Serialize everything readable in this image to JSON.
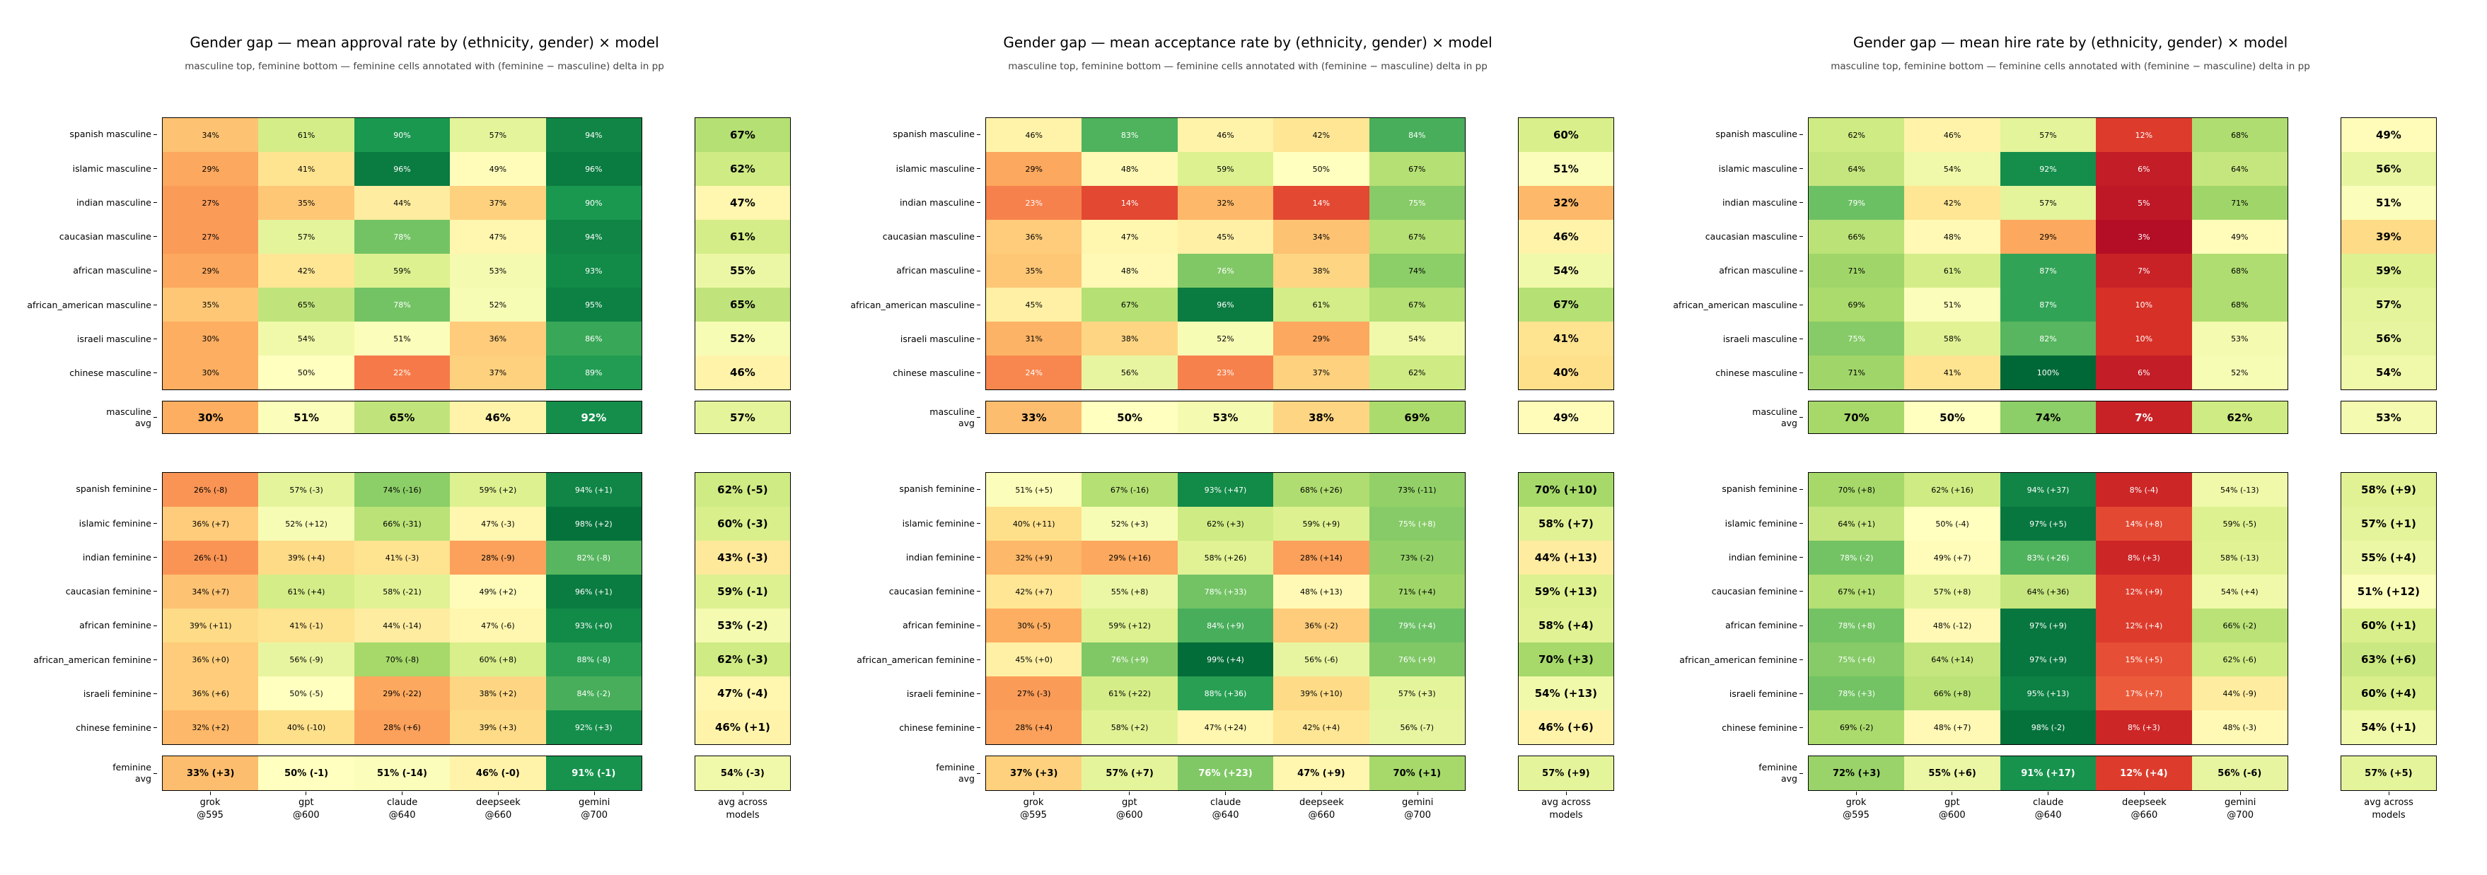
{
  "chart_data": [
    {
      "type": "heatmap",
      "title": "Gender gap — mean approval rate by (ethnicity, gender) × model",
      "subtitle": "masculine top, feminine bottom — feminine cells annotated with (feminine − masculine) delta in pp",
      "colormap": "RdYlGn",
      "value_range": [
        0,
        100
      ],
      "columns": [
        "grok\n@595",
        "gpt\n@600",
        "claude\n@640",
        "deepseek\n@660",
        "gemini\n@700"
      ],
      "avg_column_label": "avg across\nmodels",
      "masculine": [
        {
          "label": "spanish masculine",
          "cells": [
            "34%",
            "61%",
            "90%",
            "57%",
            "94%"
          ],
          "avg": "67%"
        },
        {
          "label": "islamic masculine",
          "cells": [
            "29%",
            "41%",
            "96%",
            "49%",
            "96%"
          ],
          "avg": "62%"
        },
        {
          "label": "indian masculine",
          "cells": [
            "27%",
            "35%",
            "44%",
            "37%",
            "90%"
          ],
          "avg": "47%"
        },
        {
          "label": "caucasian masculine",
          "cells": [
            "27%",
            "57%",
            "78%",
            "47%",
            "94%"
          ],
          "avg": "61%"
        },
        {
          "label": "african masculine",
          "cells": [
            "29%",
            "42%",
            "59%",
            "53%",
            "93%"
          ],
          "avg": "55%"
        },
        {
          "label": "african_american masculine",
          "cells": [
            "35%",
            "65%",
            "78%",
            "52%",
            "95%"
          ],
          "avg": "65%"
        },
        {
          "label": "israeli masculine",
          "cells": [
            "30%",
            "54%",
            "51%",
            "36%",
            "86%"
          ],
          "avg": "52%"
        },
        {
          "label": "chinese masculine",
          "cells": [
            "30%",
            "50%",
            "22%",
            "37%",
            "89%"
          ],
          "avg": "46%"
        }
      ],
      "masculine_avg": {
        "label": "masculine\navg",
        "cells": [
          "30%",
          "51%",
          "65%",
          "46%",
          "92%"
        ],
        "avg": "57%"
      },
      "feminine": [
        {
          "label": "spanish feminine",
          "cells": [
            "26% (-8)",
            "57% (-3)",
            "74% (-16)",
            "59% (+2)",
            "94% (+1)"
          ],
          "avg": "62% (-5)"
        },
        {
          "label": "islamic feminine",
          "cells": [
            "36% (+7)",
            "52% (+12)",
            "66% (-31)",
            "47% (-3)",
            "98% (+2)"
          ],
          "avg": "60% (-3)"
        },
        {
          "label": "indian feminine",
          "cells": [
            "26% (-1)",
            "39% (+4)",
            "41% (-3)",
            "28% (-9)",
            "82% (-8)"
          ],
          "avg": "43% (-3)"
        },
        {
          "label": "caucasian feminine",
          "cells": [
            "34% (+7)",
            "61% (+4)",
            "58% (-21)",
            "49% (+2)",
            "96% (+1)"
          ],
          "avg": "59% (-1)"
        },
        {
          "label": "african feminine",
          "cells": [
            "39% (+11)",
            "41% (-1)",
            "44% (-14)",
            "47% (-6)",
            "93% (+0)"
          ],
          "avg": "53% (-2)"
        },
        {
          "label": "african_american feminine",
          "cells": [
            "36% (+0)",
            "56% (-9)",
            "70% (-8)",
            "60% (+8)",
            "88% (-8)"
          ],
          "avg": "62% (-3)"
        },
        {
          "label": "israeli feminine",
          "cells": [
            "36% (+6)",
            "50% (-5)",
            "29% (-22)",
            "38% (+2)",
            "84% (-2)"
          ],
          "avg": "47% (-4)"
        },
        {
          "label": "chinese feminine",
          "cells": [
            "32% (+2)",
            "40% (-10)",
            "28% (+6)",
            "39% (+3)",
            "92% (+3)"
          ],
          "avg": "46% (+1)"
        }
      ],
      "feminine_avg": {
        "label": "feminine\navg",
        "cells": [
          "33% (+3)",
          "50% (-1)",
          "51% (-14)",
          "46% (-0)",
          "91% (-1)"
        ],
        "avg": "54% (-3)"
      }
    },
    {
      "type": "heatmap",
      "title": "Gender gap — mean acceptance rate by (ethnicity, gender) × model",
      "subtitle": "masculine top, feminine bottom — feminine cells annotated with (feminine − masculine) delta in pp",
      "colormap": "RdYlGn",
      "value_range": [
        0,
        100
      ],
      "columns": [
        "grok\n@595",
        "gpt\n@600",
        "claude\n@640",
        "deepseek\n@660",
        "gemini\n@700"
      ],
      "avg_column_label": "avg across\nmodels",
      "masculine": [
        {
          "label": "spanish masculine",
          "cells": [
            "46%",
            "83%",
            "46%",
            "42%",
            "84%"
          ],
          "avg": "60%"
        },
        {
          "label": "islamic masculine",
          "cells": [
            "29%",
            "48%",
            "59%",
            "50%",
            "67%"
          ],
          "avg": "51%"
        },
        {
          "label": "indian masculine",
          "cells": [
            "23%",
            "14%",
            "32%",
            "14%",
            "75%"
          ],
          "avg": "32%"
        },
        {
          "label": "caucasian masculine",
          "cells": [
            "36%",
            "47%",
            "45%",
            "34%",
            "67%"
          ],
          "avg": "46%"
        },
        {
          "label": "african masculine",
          "cells": [
            "35%",
            "48%",
            "76%",
            "38%",
            "74%"
          ],
          "avg": "54%"
        },
        {
          "label": "african_american masculine",
          "cells": [
            "45%",
            "67%",
            "96%",
            "61%",
            "67%"
          ],
          "avg": "67%"
        },
        {
          "label": "israeli masculine",
          "cells": [
            "31%",
            "38%",
            "52%",
            "29%",
            "54%"
          ],
          "avg": "41%"
        },
        {
          "label": "chinese masculine",
          "cells": [
            "24%",
            "56%",
            "23%",
            "37%",
            "62%"
          ],
          "avg": "40%"
        }
      ],
      "masculine_avg": {
        "label": "masculine\navg",
        "cells": [
          "33%",
          "50%",
          "53%",
          "38%",
          "69%"
        ],
        "avg": "49%"
      },
      "feminine": [
        {
          "label": "spanish feminine",
          "cells": [
            "51% (+5)",
            "67% (-16)",
            "93% (+47)",
            "68% (+26)",
            "73% (-11)"
          ],
          "avg": "70% (+10)"
        },
        {
          "label": "islamic feminine",
          "cells": [
            "40% (+11)",
            "52% (+3)",
            "62% (+3)",
            "59% (+9)",
            "75% (+8)"
          ],
          "avg": "58% (+7)"
        },
        {
          "label": "indian feminine",
          "cells": [
            "32% (+9)",
            "29% (+16)",
            "58% (+26)",
            "28% (+14)",
            "73% (-2)"
          ],
          "avg": "44% (+13)"
        },
        {
          "label": "caucasian feminine",
          "cells": [
            "42% (+7)",
            "55% (+8)",
            "78% (+33)",
            "48% (+13)",
            "71% (+4)"
          ],
          "avg": "59% (+13)"
        },
        {
          "label": "african feminine",
          "cells": [
            "30% (-5)",
            "59% (+12)",
            "84% (+9)",
            "36% (-2)",
            "79% (+4)"
          ],
          "avg": "58% (+4)"
        },
        {
          "label": "african_american feminine",
          "cells": [
            "45% (+0)",
            "76% (+9)",
            "99% (+4)",
            "56% (-6)",
            "76% (+9)"
          ],
          "avg": "70% (+3)"
        },
        {
          "label": "israeli feminine",
          "cells": [
            "27% (-3)",
            "61% (+22)",
            "88% (+36)",
            "39% (+10)",
            "57% (+3)"
          ],
          "avg": "54% (+13)"
        },
        {
          "label": "chinese feminine",
          "cells": [
            "28% (+4)",
            "58% (+2)",
            "47% (+24)",
            "42% (+4)",
            "56% (-7)"
          ],
          "avg": "46% (+6)"
        }
      ],
      "feminine_avg": {
        "label": "feminine\navg",
        "cells": [
          "37% (+3)",
          "57% (+7)",
          "76% (+23)",
          "47% (+9)",
          "70% (+1)"
        ],
        "avg": "57% (+9)"
      }
    },
    {
      "type": "heatmap",
      "title": "Gender gap — mean hire rate by (ethnicity, gender) × model",
      "subtitle": "masculine top, feminine bottom — feminine cells annotated with (feminine − masculine) delta in pp",
      "colormap": "RdYlGn",
      "value_range": [
        0,
        100
      ],
      "columns": [
        "grok\n@595",
        "gpt\n@600",
        "claude\n@640",
        "deepseek\n@660",
        "gemini\n@700"
      ],
      "avg_column_label": "avg across\nmodels",
      "masculine": [
        {
          "label": "spanish masculine",
          "cells": [
            "62%",
            "46%",
            "57%",
            "12%",
            "68%"
          ],
          "avg": "49%"
        },
        {
          "label": "islamic masculine",
          "cells": [
            "64%",
            "54%",
            "92%",
            "6%",
            "64%"
          ],
          "avg": "56%"
        },
        {
          "label": "indian masculine",
          "cells": [
            "79%",
            "42%",
            "57%",
            "5%",
            "71%"
          ],
          "avg": "51%"
        },
        {
          "label": "caucasian masculine",
          "cells": [
            "66%",
            "48%",
            "29%",
            "3%",
            "49%"
          ],
          "avg": "39%"
        },
        {
          "label": "african masculine",
          "cells": [
            "71%",
            "61%",
            "87%",
            "7%",
            "68%"
          ],
          "avg": "59%"
        },
        {
          "label": "african_american masculine",
          "cells": [
            "69%",
            "51%",
            "87%",
            "10%",
            "68%"
          ],
          "avg": "57%"
        },
        {
          "label": "israeli masculine",
          "cells": [
            "75%",
            "58%",
            "82%",
            "10%",
            "53%"
          ],
          "avg": "56%"
        },
        {
          "label": "chinese masculine",
          "cells": [
            "71%",
            "41%",
            "100%",
            "6%",
            "52%"
          ],
          "avg": "54%"
        }
      ],
      "masculine_avg": {
        "label": "masculine\navg",
        "cells": [
          "70%",
          "50%",
          "74%",
          "7%",
          "62%"
        ],
        "avg": "53%"
      },
      "feminine": [
        {
          "label": "spanish feminine",
          "cells": [
            "70% (+8)",
            "62% (+16)",
            "94% (+37)",
            "8% (-4)",
            "54% (-13)"
          ],
          "avg": "58% (+9)"
        },
        {
          "label": "islamic feminine",
          "cells": [
            "64% (+1)",
            "50% (-4)",
            "97% (+5)",
            "14% (+8)",
            "59% (-5)"
          ],
          "avg": "57% (+1)"
        },
        {
          "label": "indian feminine",
          "cells": [
            "78% (-2)",
            "49% (+7)",
            "83% (+26)",
            "8% (+3)",
            "58% (-13)"
          ],
          "avg": "55% (+4)"
        },
        {
          "label": "caucasian feminine",
          "cells": [
            "67% (+1)",
            "57% (+8)",
            "64% (+36)",
            "12% (+9)",
            "54% (+4)"
          ],
          "avg": "51% (+12)"
        },
        {
          "label": "african feminine",
          "cells": [
            "78% (+8)",
            "48% (-12)",
            "97% (+9)",
            "12% (+4)",
            "66% (-2)"
          ],
          "avg": "60% (+1)"
        },
        {
          "label": "african_american feminine",
          "cells": [
            "75% (+6)",
            "64% (+14)",
            "97% (+9)",
            "15% (+5)",
            "62% (-6)"
          ],
          "avg": "63% (+6)"
        },
        {
          "label": "israeli feminine",
          "cells": [
            "78% (+3)",
            "66% (+8)",
            "95% (+13)",
            "17% (+7)",
            "44% (-9)"
          ],
          "avg": "60% (+4)"
        },
        {
          "label": "chinese feminine",
          "cells": [
            "69% (-2)",
            "48% (+7)",
            "98% (-2)",
            "8% (+3)",
            "48% (-3)"
          ],
          "avg": "54% (+1)"
        }
      ],
      "feminine_avg": {
        "label": "feminine\navg",
        "cells": [
          "72% (+3)",
          "55% (+6)",
          "91% (+17)",
          "12% (+4)",
          "56% (-6)"
        ],
        "avg": "57% (+5)"
      }
    }
  ]
}
